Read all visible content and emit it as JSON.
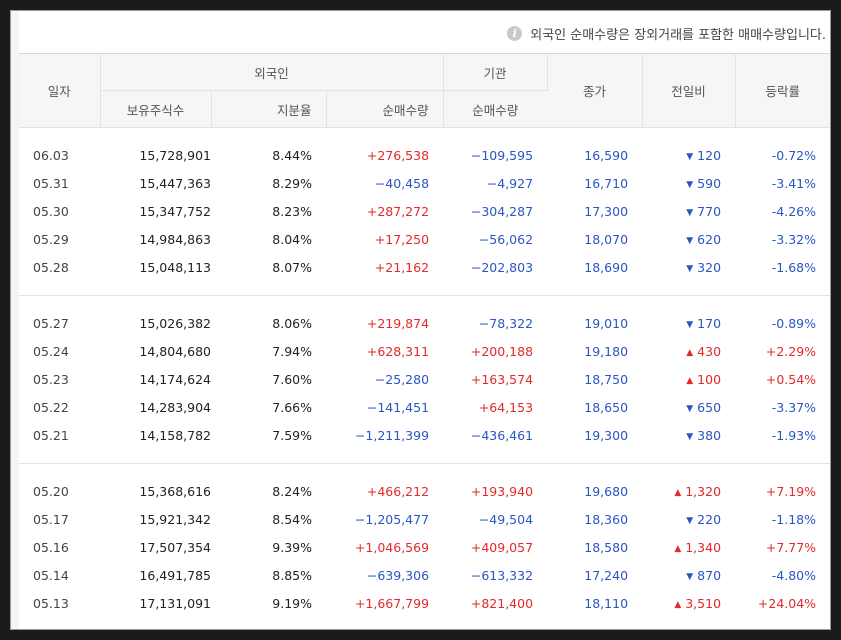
{
  "notice": "외국인 순매수량은 장외거래를 포함한 매매수량입니다.",
  "headers": {
    "date": "일자",
    "foreign": "외국인",
    "institution": "기관",
    "close": "종가",
    "change": "전일비",
    "rate": "등락률",
    "holdings": "보유주식수",
    "ratio": "지분율",
    "foreign_net": "순매수량",
    "inst_net": "순매수량"
  },
  "groups": [
    [
      {
        "date": "06.03",
        "holdings": "15,728,901",
        "ratio": "8.44%",
        "foreign_net": "+276,538",
        "fdir": "up",
        "inst_net": "−109,595",
        "idir": "down",
        "close": "16,590",
        "change": "120",
        "cdir": "down",
        "rate": "-0.72%"
      },
      {
        "date": "05.31",
        "holdings": "15,447,363",
        "ratio": "8.29%",
        "foreign_net": "−40,458",
        "fdir": "down",
        "inst_net": "−4,927",
        "idir": "down",
        "close": "16,710",
        "change": "590",
        "cdir": "down",
        "rate": "-3.41%"
      },
      {
        "date": "05.30",
        "holdings": "15,347,752",
        "ratio": "8.23%",
        "foreign_net": "+287,272",
        "fdir": "up",
        "inst_net": "−304,287",
        "idir": "down",
        "close": "17,300",
        "change": "770",
        "cdir": "down",
        "rate": "-4.26%"
      },
      {
        "date": "05.29",
        "holdings": "14,984,863",
        "ratio": "8.04%",
        "foreign_net": "+17,250",
        "fdir": "up",
        "inst_net": "−56,062",
        "idir": "down",
        "close": "18,070",
        "change": "620",
        "cdir": "down",
        "rate": "-3.32%"
      },
      {
        "date": "05.28",
        "holdings": "15,048,113",
        "ratio": "8.07%",
        "foreign_net": "+21,162",
        "fdir": "up",
        "inst_net": "−202,803",
        "idir": "down",
        "close": "18,690",
        "change": "320",
        "cdir": "down",
        "rate": "-1.68%"
      }
    ],
    [
      {
        "date": "05.27",
        "holdings": "15,026,382",
        "ratio": "8.06%",
        "foreign_net": "+219,874",
        "fdir": "up",
        "inst_net": "−78,322",
        "idir": "down",
        "close": "19,010",
        "change": "170",
        "cdir": "down",
        "rate": "-0.89%"
      },
      {
        "date": "05.24",
        "holdings": "14,804,680",
        "ratio": "7.94%",
        "foreign_net": "+628,311",
        "fdir": "up",
        "inst_net": "+200,188",
        "idir": "up",
        "close": "19,180",
        "change": "430",
        "cdir": "up",
        "rate": "+2.29%"
      },
      {
        "date": "05.23",
        "holdings": "14,174,624",
        "ratio": "7.60%",
        "foreign_net": "−25,280",
        "fdir": "down",
        "inst_net": "+163,574",
        "idir": "up",
        "close": "18,750",
        "change": "100",
        "cdir": "up",
        "rate": "+0.54%"
      },
      {
        "date": "05.22",
        "holdings": "14,283,904",
        "ratio": "7.66%",
        "foreign_net": "−141,451",
        "fdir": "down",
        "inst_net": "+64,153",
        "idir": "up",
        "close": "18,650",
        "change": "650",
        "cdir": "down",
        "rate": "-3.37%"
      },
      {
        "date": "05.21",
        "holdings": "14,158,782",
        "ratio": "7.59%",
        "foreign_net": "−1,211,399",
        "fdir": "down",
        "inst_net": "−436,461",
        "idir": "down",
        "close": "19,300",
        "change": "380",
        "cdir": "down",
        "rate": "-1.93%"
      }
    ],
    [
      {
        "date": "05.20",
        "holdings": "15,368,616",
        "ratio": "8.24%",
        "foreign_net": "+466,212",
        "fdir": "up",
        "inst_net": "+193,940",
        "idir": "up",
        "close": "19,680",
        "change": "1,320",
        "cdir": "up",
        "rate": "+7.19%"
      },
      {
        "date": "05.17",
        "holdings": "15,921,342",
        "ratio": "8.54%",
        "foreign_net": "−1,205,477",
        "fdir": "down",
        "inst_net": "−49,504",
        "idir": "down",
        "close": "18,360",
        "change": "220",
        "cdir": "down",
        "rate": "-1.18%"
      },
      {
        "date": "05.16",
        "holdings": "17,507,354",
        "ratio": "9.39%",
        "foreign_net": "+1,046,569",
        "fdir": "up",
        "inst_net": "+409,057",
        "idir": "up",
        "close": "18,580",
        "change": "1,340",
        "cdir": "up",
        "rate": "+7.77%"
      },
      {
        "date": "05.14",
        "holdings": "16,491,785",
        "ratio": "8.85%",
        "foreign_net": "−639,306",
        "fdir": "down",
        "inst_net": "−613,332",
        "idir": "down",
        "close": "17,240",
        "change": "870",
        "cdir": "down",
        "rate": "-4.80%"
      },
      {
        "date": "05.13",
        "holdings": "17,131,091",
        "ratio": "9.19%",
        "foreign_net": "+1,667,799",
        "fdir": "up",
        "inst_net": "+821,400",
        "idir": "up",
        "close": "18,110",
        "change": "3,510",
        "cdir": "up",
        "rate": "+24.04%"
      }
    ]
  ]
}
